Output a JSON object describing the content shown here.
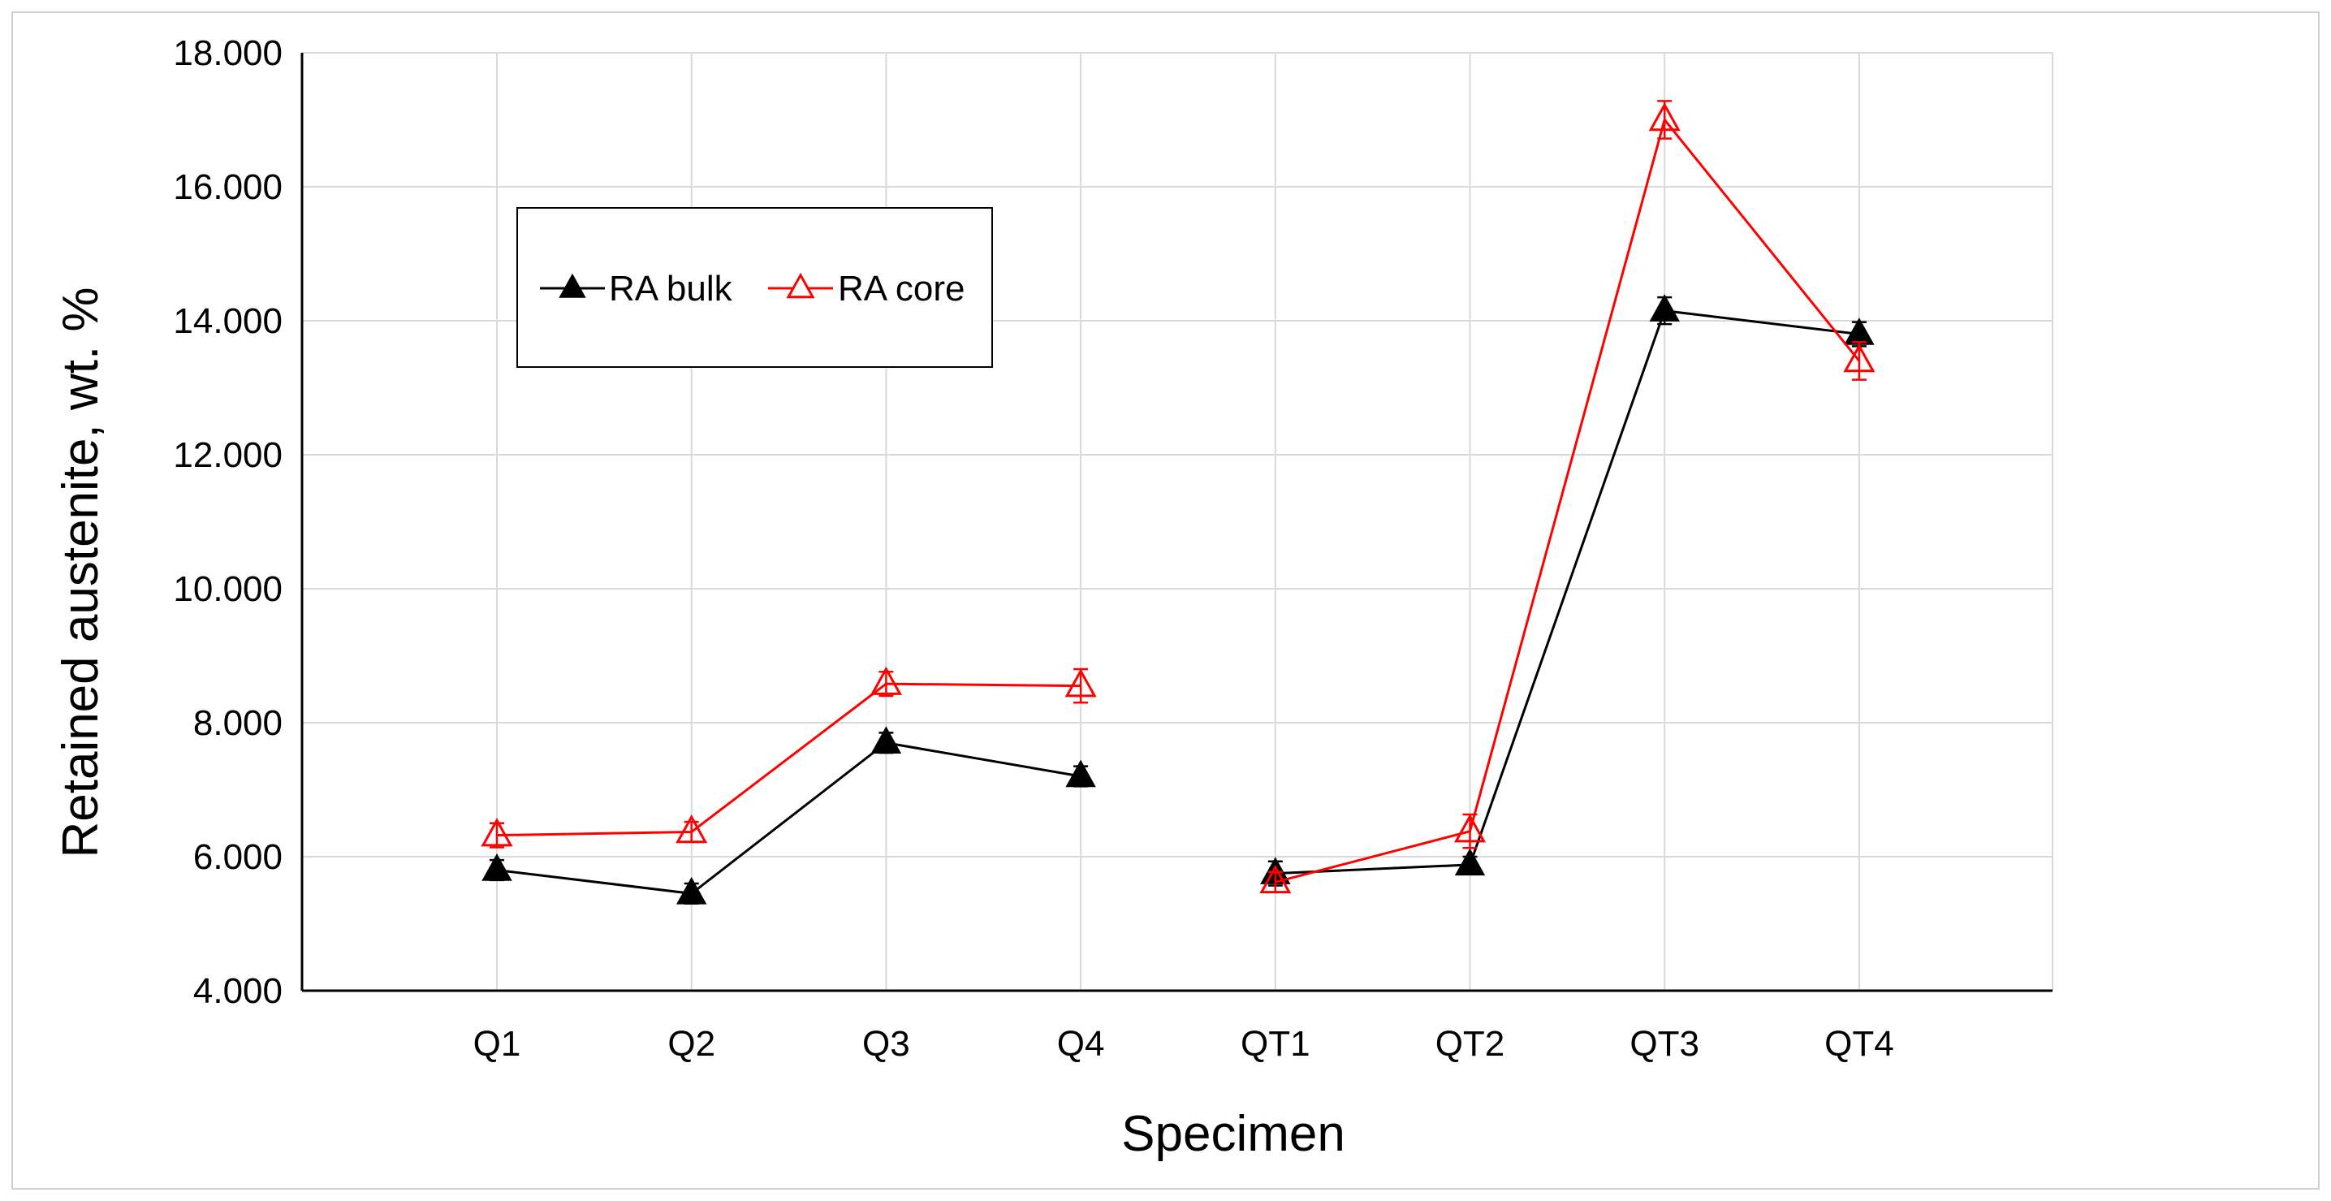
{
  "chart_data": {
    "type": "line",
    "title": "",
    "xlabel": "Specimen",
    "ylabel": "Retained austenite, wt. %",
    "ylim": [
      4,
      18
    ],
    "ytick_step": 2,
    "ytick_labels": [
      "4.000",
      "6.000",
      "8.000",
      "10.000",
      "12.000",
      "14.000",
      "16.000",
      "18.000"
    ],
    "categories": [
      "Q1",
      "Q2",
      "Q3",
      "Q4",
      "QT1",
      "QT2",
      "QT3",
      "QT4"
    ],
    "grid": true,
    "legend_position": "top-left",
    "series": [
      {
        "name": "RA bulk",
        "color": "#000000",
        "marker": "filled-triangle",
        "segments": [
          [
            0,
            3
          ],
          [
            4,
            7
          ]
        ],
        "values": [
          5.8,
          5.45,
          7.7,
          7.2,
          5.75,
          5.88,
          14.15,
          13.8
        ],
        "errors": [
          0.15,
          0.15,
          0.15,
          0.15,
          0.18,
          0.12,
          0.2,
          0.18
        ]
      },
      {
        "name": "RA core",
        "color": "#ff0000",
        "marker": "open-triangle",
        "segments": [
          [
            0,
            3
          ],
          [
            4,
            7
          ]
        ],
        "values": [
          6.32,
          6.37,
          8.58,
          8.55,
          5.62,
          6.38,
          17.0,
          13.4
        ],
        "errors": [
          0.18,
          0.15,
          0.18,
          0.25,
          0.15,
          0.25,
          0.28,
          0.28
        ]
      }
    ]
  }
}
